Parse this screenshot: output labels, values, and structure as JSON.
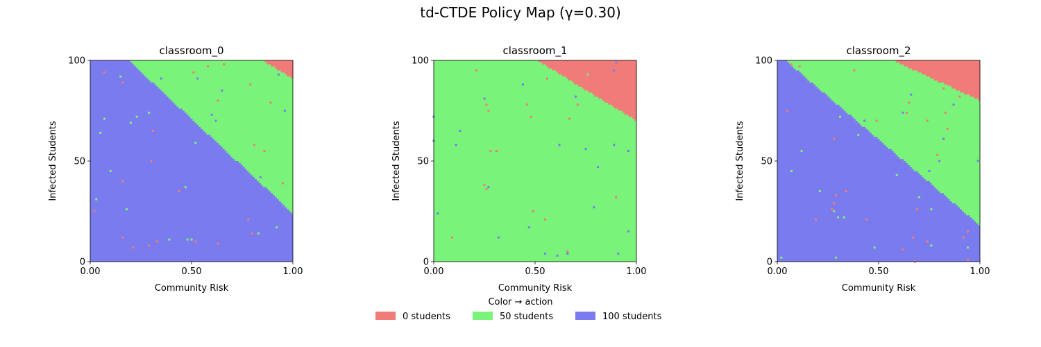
{
  "figure": {
    "title": "td-CTDE Policy Map (γ=0.30)"
  },
  "legend": {
    "title": "Color → action",
    "placement": "bottom-center",
    "entries": [
      {
        "label": "0 students",
        "color": "#f07b78"
      },
      {
        "label": "50 students",
        "color": "#7af37a"
      },
      {
        "label": "100 students",
        "color": "#7b7bf0"
      }
    ]
  },
  "colors": {
    "action_0": "#f07b78",
    "action_50": "#7af37a",
    "action_100": "#7b7bf0"
  },
  "chart_data": [
    {
      "type": "heatmap",
      "title": "classroom_0",
      "xlabel": "Community Risk",
      "ylabel": "Infected Students",
      "xlim": [
        0,
        1
      ],
      "ylim": [
        0,
        100
      ],
      "xticks": [
        "0.00",
        "0.50",
        "1.00"
      ],
      "yticks": [
        "0",
        "50",
        "100"
      ],
      "grid": false,
      "boundaries": [
        {
          "lower_action": 100,
          "upper_action": 50,
          "line": [
            [
              0.19,
              100
            ],
            [
              1.0,
              24
            ]
          ]
        },
        {
          "lower_action": 50,
          "upper_action": 0,
          "line": [
            [
              0.85,
              100
            ],
            [
              1.0,
              91
            ]
          ]
        }
      ],
      "noise_cells": [
        {
          "x": 0.07,
          "y": 94,
          "action": 0
        },
        {
          "x": 0.15,
          "y": 92,
          "action": 50
        },
        {
          "x": 0.16,
          "y": 89,
          "action": 0
        },
        {
          "x": 0.07,
          "y": 71,
          "action": 50
        },
        {
          "x": 0.05,
          "y": 64,
          "action": 50
        },
        {
          "x": 0.2,
          "y": 69,
          "action": 50
        },
        {
          "x": 0.23,
          "y": 72,
          "action": 50
        },
        {
          "x": 0.29,
          "y": 74,
          "action": 50
        },
        {
          "x": 0.31,
          "y": 65,
          "action": 0
        },
        {
          "x": 0.35,
          "y": 91,
          "action": 100
        },
        {
          "x": 0.1,
          "y": 45,
          "action": 50
        },
        {
          "x": 0.03,
          "y": 31,
          "action": 50
        },
        {
          "x": 0.16,
          "y": 40,
          "action": 0
        },
        {
          "x": 0.18,
          "y": 26,
          "action": 50
        },
        {
          "x": 0.3,
          "y": 50,
          "action": 0
        },
        {
          "x": 0.02,
          "y": 25,
          "action": 0
        },
        {
          "x": 0.16,
          "y": 12,
          "action": 0
        },
        {
          "x": 0.21,
          "y": 7,
          "action": 0
        },
        {
          "x": 0.29,
          "y": 8,
          "action": 0
        },
        {
          "x": 0.33,
          "y": 10,
          "action": 0
        },
        {
          "x": 0.39,
          "y": 11,
          "action": 50
        },
        {
          "x": 0.44,
          "y": 35,
          "action": 0
        },
        {
          "x": 0.47,
          "y": 37,
          "action": 50
        },
        {
          "x": 0.48,
          "y": 11,
          "action": 50
        },
        {
          "x": 0.52,
          "y": 10,
          "action": 0
        },
        {
          "x": 0.5,
          "y": 11,
          "action": 50
        },
        {
          "x": 0.63,
          "y": 9,
          "action": 0
        },
        {
          "x": 0.52,
          "y": 59,
          "action": 50
        },
        {
          "x": 0.51,
          "y": 94,
          "action": 0
        },
        {
          "x": 0.58,
          "y": 97,
          "action": 0
        },
        {
          "x": 0.53,
          "y": 91,
          "action": 100
        },
        {
          "x": 0.66,
          "y": 98,
          "action": 0
        },
        {
          "x": 0.65,
          "y": 85,
          "action": 100
        },
        {
          "x": 0.63,
          "y": 80,
          "action": 0
        },
        {
          "x": 0.6,
          "y": 73,
          "action": 100
        },
        {
          "x": 0.62,
          "y": 70,
          "action": 100
        },
        {
          "x": 0.79,
          "y": 88,
          "action": 0
        },
        {
          "x": 0.81,
          "y": 58,
          "action": 0
        },
        {
          "x": 0.86,
          "y": 55,
          "action": 0
        },
        {
          "x": 0.84,
          "y": 42,
          "action": 100
        },
        {
          "x": 0.89,
          "y": 79,
          "action": 0
        },
        {
          "x": 0.93,
          "y": 93,
          "action": 100
        },
        {
          "x": 0.96,
          "y": 75,
          "action": 100
        },
        {
          "x": 0.95,
          "y": 39,
          "action": 0
        },
        {
          "x": 0.78,
          "y": 21,
          "action": 0
        },
        {
          "x": 0.8,
          "y": 14,
          "action": 0
        },
        {
          "x": 0.83,
          "y": 14,
          "action": 50
        },
        {
          "x": 0.92,
          "y": 17,
          "action": 50
        }
      ]
    },
    {
      "type": "heatmap",
      "title": "classroom_1",
      "xlabel": "Community Risk",
      "ylabel": "Infected Students",
      "xlim": [
        0,
        1
      ],
      "ylim": [
        0,
        100
      ],
      "xticks": [
        "0.00",
        "0.50",
        "1.00"
      ],
      "yticks": [
        "0",
        "50",
        "100"
      ],
      "grid": false,
      "boundaries": [
        {
          "lower_action": 50,
          "upper_action": 0,
          "line": [
            [
              0.51,
              100
            ],
            [
              1.0,
              70
            ]
          ]
        }
      ],
      "noise_cells": [
        {
          "x": 0.21,
          "y": 95,
          "action": 0
        },
        {
          "x": 0.25,
          "y": 81,
          "action": 100
        },
        {
          "x": 0.26,
          "y": 78,
          "action": 0
        },
        {
          "x": 0.27,
          "y": 75,
          "action": 0
        },
        {
          "x": 0.13,
          "y": 65,
          "action": 100
        },
        {
          "x": 0.11,
          "y": 58,
          "action": 100
        },
        {
          "x": 0.0,
          "y": 72,
          "action": 100
        },
        {
          "x": 0.0,
          "y": 60,
          "action": 100
        },
        {
          "x": 0.28,
          "y": 55,
          "action": 0
        },
        {
          "x": 0.31,
          "y": 55,
          "action": 0
        },
        {
          "x": 0.25,
          "y": 38,
          "action": 0
        },
        {
          "x": 0.26,
          "y": 36,
          "action": 0
        },
        {
          "x": 0.27,
          "y": 37,
          "action": 100
        },
        {
          "x": 0.02,
          "y": 24,
          "action": 100
        },
        {
          "x": 0.09,
          "y": 12,
          "action": 0
        },
        {
          "x": 0.32,
          "y": 12,
          "action": 100
        },
        {
          "x": 0.44,
          "y": 88,
          "action": 100
        },
        {
          "x": 0.46,
          "y": 78,
          "action": 0
        },
        {
          "x": 0.48,
          "y": 72,
          "action": 0
        },
        {
          "x": 0.49,
          "y": 25,
          "action": 0
        },
        {
          "x": 0.47,
          "y": 17,
          "action": 100
        },
        {
          "x": 0.55,
          "y": 21,
          "action": 0
        },
        {
          "x": 0.56,
          "y": 91,
          "action": 0
        },
        {
          "x": 0.62,
          "y": 58,
          "action": 100
        },
        {
          "x": 0.67,
          "y": 71,
          "action": 0
        },
        {
          "x": 0.7,
          "y": 82,
          "action": 100
        },
        {
          "x": 0.71,
          "y": 78,
          "action": 0
        },
        {
          "x": 0.76,
          "y": 93,
          "action": 50
        },
        {
          "x": 0.75,
          "y": 56,
          "action": 100
        },
        {
          "x": 0.79,
          "y": 27,
          "action": 100
        },
        {
          "x": 0.81,
          "y": 47,
          "action": 100
        },
        {
          "x": 0.55,
          "y": 4,
          "action": 100
        },
        {
          "x": 0.61,
          "y": 3,
          "action": 100
        },
        {
          "x": 0.66,
          "y": 5,
          "action": 0
        },
        {
          "x": 0.66,
          "y": 4,
          "action": 100
        },
        {
          "x": 0.9,
          "y": 99,
          "action": 100
        },
        {
          "x": 0.89,
          "y": 95,
          "action": 100
        },
        {
          "x": 0.89,
          "y": 58,
          "action": 100
        },
        {
          "x": 0.9,
          "y": 32,
          "action": 0
        },
        {
          "x": 0.96,
          "y": 55,
          "action": 100
        },
        {
          "x": 0.96,
          "y": 15,
          "action": 100
        },
        {
          "x": 0.91,
          "y": 4,
          "action": 100
        }
      ]
    },
    {
      "type": "heatmap",
      "title": "classroom_2",
      "xlabel": "Community Risk",
      "ylabel": "Infected Students",
      "xlim": [
        0,
        1
      ],
      "ylim": [
        0,
        100
      ],
      "xticks": [
        "0.00",
        "0.50",
        "1.00"
      ],
      "yticks": [
        "0",
        "50",
        "100"
      ],
      "grid": false,
      "boundaries": [
        {
          "lower_action": 100,
          "upper_action": 50,
          "line": [
            [
              0.04,
              100
            ],
            [
              1.0,
              18
            ]
          ]
        },
        {
          "lower_action": 50,
          "upper_action": 0,
          "line": [
            [
              0.57,
              100
            ],
            [
              1.0,
              80
            ]
          ]
        }
      ],
      "noise_cells": [
        {
          "x": 0.07,
          "y": 98,
          "action": 0
        },
        {
          "x": 0.09,
          "y": 97,
          "action": 50
        },
        {
          "x": 0.11,
          "y": 97,
          "action": 0
        },
        {
          "x": 0.05,
          "y": 75,
          "action": 0
        },
        {
          "x": 0.07,
          "y": 45,
          "action": 50
        },
        {
          "x": 0.12,
          "y": 55,
          "action": 50
        },
        {
          "x": 0.02,
          "y": 2,
          "action": 50
        },
        {
          "x": 0.19,
          "y": 21,
          "action": 0
        },
        {
          "x": 0.21,
          "y": 35,
          "action": 50
        },
        {
          "x": 0.27,
          "y": 26,
          "action": 0
        },
        {
          "x": 0.28,
          "y": 29,
          "action": 0
        },
        {
          "x": 0.28,
          "y": 61,
          "action": 0
        },
        {
          "x": 0.29,
          "y": 33,
          "action": 0
        },
        {
          "x": 0.28,
          "y": 25,
          "action": 50
        },
        {
          "x": 0.3,
          "y": 22,
          "action": 50
        },
        {
          "x": 0.33,
          "y": 22,
          "action": 50
        },
        {
          "x": 0.34,
          "y": 35,
          "action": 0
        },
        {
          "x": 0.29,
          "y": 2,
          "action": 50
        },
        {
          "x": 0.31,
          "y": 72,
          "action": 50
        },
        {
          "x": 0.38,
          "y": 95,
          "action": 0
        },
        {
          "x": 0.4,
          "y": 63,
          "action": 50
        },
        {
          "x": 0.43,
          "y": 70,
          "action": 100
        },
        {
          "x": 0.44,
          "y": 21,
          "action": 0
        },
        {
          "x": 0.48,
          "y": 7,
          "action": 50
        },
        {
          "x": 0.49,
          "y": 70,
          "action": 0
        },
        {
          "x": 0.59,
          "y": 43,
          "action": 50
        },
        {
          "x": 0.62,
          "y": 74,
          "action": 100
        },
        {
          "x": 0.64,
          "y": 74,
          "action": 0
        },
        {
          "x": 0.65,
          "y": 79,
          "action": 0
        },
        {
          "x": 0.66,
          "y": 83,
          "action": 100
        },
        {
          "x": 0.62,
          "y": 6,
          "action": 0
        },
        {
          "x": 0.67,
          "y": 12,
          "action": 0
        },
        {
          "x": 0.68,
          "y": 0,
          "action": 0
        },
        {
          "x": 0.69,
          "y": 26,
          "action": 0
        },
        {
          "x": 0.7,
          "y": 32,
          "action": 50
        },
        {
          "x": 0.74,
          "y": 70,
          "action": 0
        },
        {
          "x": 0.75,
          "y": 45,
          "action": 100
        },
        {
          "x": 0.76,
          "y": 26,
          "action": 50
        },
        {
          "x": 0.74,
          "y": 10,
          "action": 0
        },
        {
          "x": 0.76,
          "y": 8,
          "action": 50
        },
        {
          "x": 0.79,
          "y": 53,
          "action": 0
        },
        {
          "x": 0.8,
          "y": 50,
          "action": 100
        },
        {
          "x": 0.8,
          "y": 7,
          "action": 100
        },
        {
          "x": 0.82,
          "y": 86,
          "action": 0
        },
        {
          "x": 0.83,
          "y": 74,
          "action": 0
        },
        {
          "x": 0.82,
          "y": 61,
          "action": 100
        },
        {
          "x": 0.84,
          "y": 66,
          "action": 0
        },
        {
          "x": 0.85,
          "y": 87,
          "action": 50
        },
        {
          "x": 0.87,
          "y": 78,
          "action": 100
        },
        {
          "x": 0.9,
          "y": 82,
          "action": 0
        },
        {
          "x": 0.91,
          "y": 4,
          "action": 100
        },
        {
          "x": 0.92,
          "y": 12,
          "action": 0
        },
        {
          "x": 0.93,
          "y": 22,
          "action": 100
        },
        {
          "x": 0.94,
          "y": 15,
          "action": 0
        },
        {
          "x": 0.94,
          "y": 7,
          "action": 50
        },
        {
          "x": 0.94,
          "y": 1,
          "action": 0
        },
        {
          "x": 0.99,
          "y": 50,
          "action": 100
        }
      ]
    }
  ]
}
